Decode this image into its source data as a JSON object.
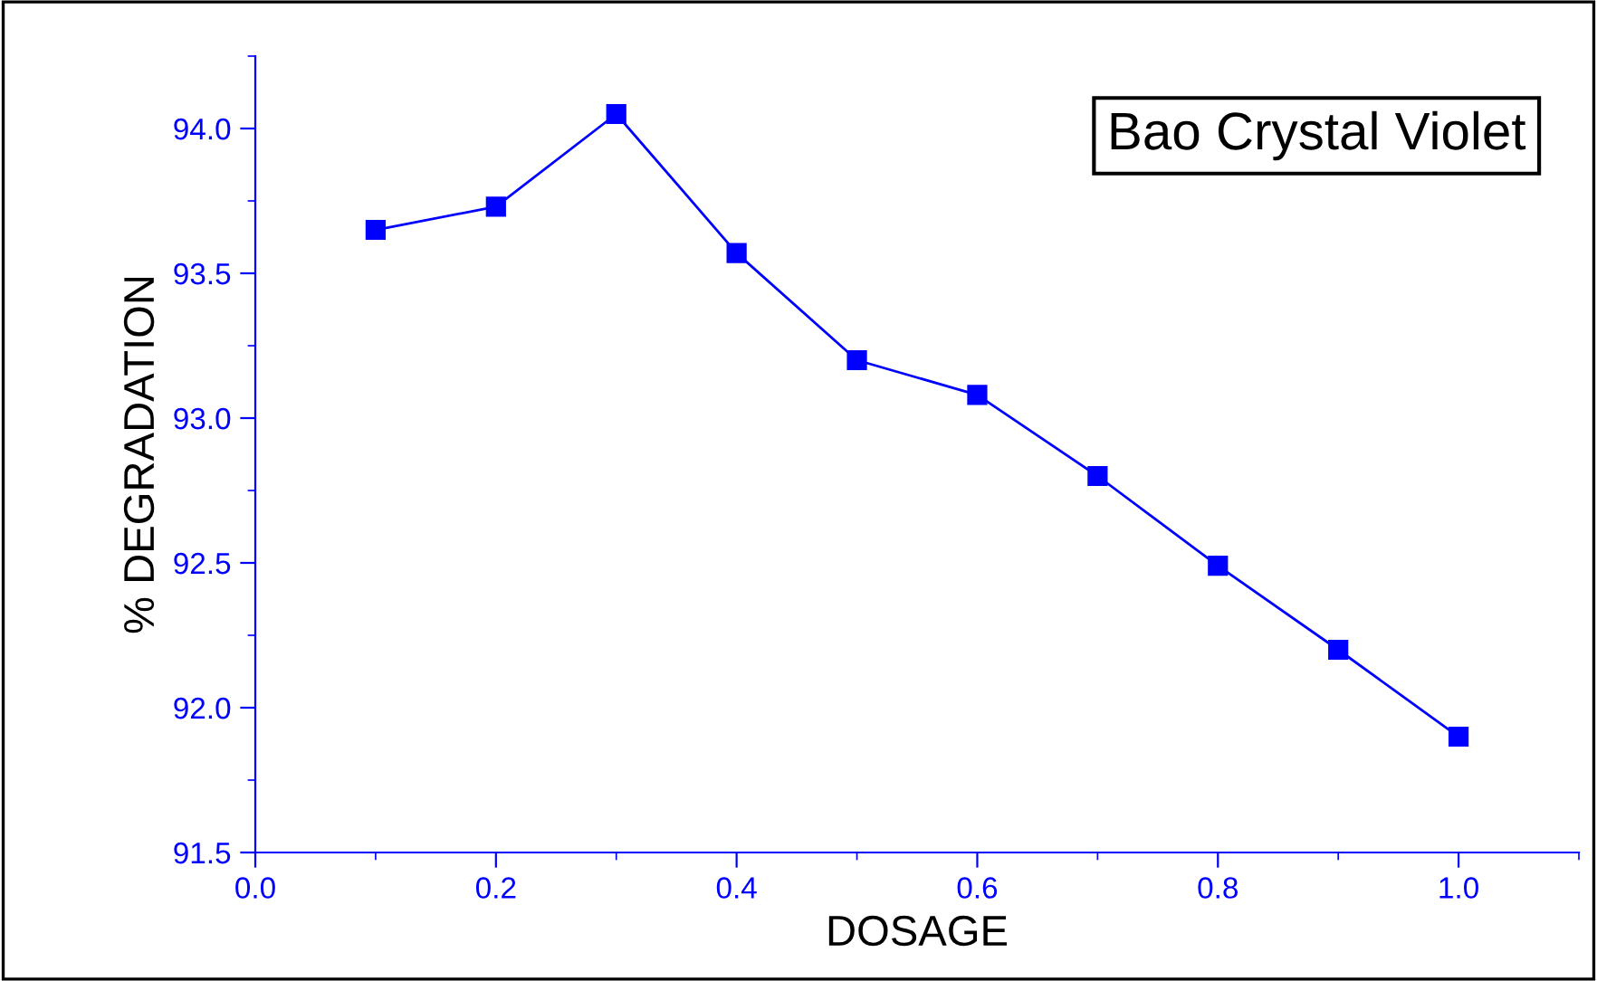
{
  "chart_data": {
    "type": "line",
    "xlabel": "DOSAGE",
    "ylabel": "% DEGRADATION",
    "annotations": [
      "Bao Crystal Violet"
    ],
    "x": [
      0.1,
      0.2,
      0.3,
      0.4,
      0.5,
      0.6,
      0.7,
      0.8,
      0.9,
      1.0
    ],
    "series": [
      {
        "color": "#0000ff",
        "values": [
          93.65,
          93.73,
          94.05,
          93.57,
          93.2,
          93.08,
          92.8,
          92.49,
          92.2,
          91.9
        ]
      }
    ],
    "marker": "square",
    "line_style": "solid",
    "xlim": [
      0.0,
      1.1
    ],
    "ylim": [
      91.5,
      94.25
    ],
    "xticks": [
      {
        "value": 0.0,
        "label": "0.0"
      },
      0.2,
      0.4,
      0.6,
      0.8,
      {
        "value": 1.0,
        "label": "1.0"
      }
    ],
    "yticks": [
      {
        "value": 91.5,
        "label": "91.5"
      },
      {
        "value": 92.0,
        "label": "92.0"
      },
      {
        "value": 92.5,
        "label": "92.5"
      },
      {
        "value": 93.0,
        "label": "93.0"
      },
      {
        "value": 93.5,
        "label": "93.5"
      },
      {
        "value": 94.0,
        "label": "94.0"
      }
    ],
    "grid": false
  }
}
